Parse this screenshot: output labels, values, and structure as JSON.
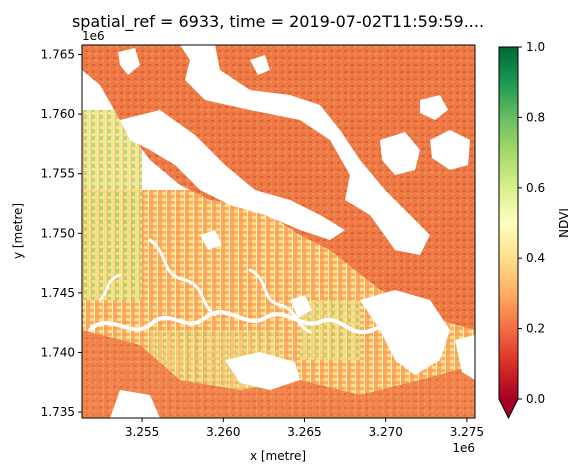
{
  "chart_data": {
    "type": "heatmap",
    "title": "spatial_ref = 6933, time = 2019-07-02T11:59:59....",
    "xlabel": "x [metre]",
    "ylabel": "y [metre]",
    "x_offset_label": "1e6",
    "y_offset_label": "1e6",
    "xlim": [
      3.2513,
      3.2755
    ],
    "ylim": [
      1.7345,
      1.7658
    ],
    "x_ticks": [
      {
        "value": 3.255,
        "label": "3.255"
      },
      {
        "value": 3.26,
        "label": "3.260"
      },
      {
        "value": 3.265,
        "label": "3.265"
      },
      {
        "value": 3.27,
        "label": "3.270"
      },
      {
        "value": 3.275,
        "label": "3.275"
      }
    ],
    "y_ticks": [
      {
        "value": 1.735,
        "label": "1.735"
      },
      {
        "value": 1.74,
        "label": "1.740"
      },
      {
        "value": 1.745,
        "label": "1.745"
      },
      {
        "value": 1.75,
        "label": "1.750"
      },
      {
        "value": 1.755,
        "label": "1.755"
      },
      {
        "value": 1.76,
        "label": "1.760"
      },
      {
        "value": 1.765,
        "label": "1.765"
      }
    ],
    "grid": false,
    "colorbar": {
      "label": "NDVI",
      "colormap": "RdYlGn",
      "range": [
        0.0,
        1.0
      ],
      "extend": "min",
      "ticks": [
        {
          "value": 0.0,
          "label": "0.0"
        },
        {
          "value": 0.2,
          "label": "0.2"
        },
        {
          "value": 0.4,
          "label": "0.4"
        },
        {
          "value": 0.6,
          "label": "0.6"
        },
        {
          "value": 0.8,
          "label": "0.8"
        },
        {
          "value": 1.0,
          "label": "1.0"
        }
      ],
      "colors": [
        "#a50026",
        "#d73027",
        "#f46d43",
        "#fdae61",
        "#fee08b",
        "#ffffbf",
        "#d9ef8b",
        "#a6d96a",
        "#66bd63",
        "#1a9850",
        "#006837"
      ]
    },
    "regions": [
      {
        "name": "",
        "x": [
          3.2513,
          3.26
        ],
        "y": [
          1.7345,
          1.756
        ],
        "ndvi": 0.4
      },
      {
        "name": "",
        "x": [
          3.26,
          3.2755
        ],
        "y": [
          1.7345,
          1.748
        ],
        "ndvi": 0.35
      },
      {
        "name": "",
        "x": [
          3.2513,
          3.2755
        ],
        "y": [
          1.745,
          1.7658
        ],
        "ndvi": 0.22
      },
      {
        "name": "",
        "x": [
          3.26,
          3.27
        ],
        "y": [
          1.738,
          1.744
        ],
        "ndvi": 0.45
      }
    ]
  }
}
